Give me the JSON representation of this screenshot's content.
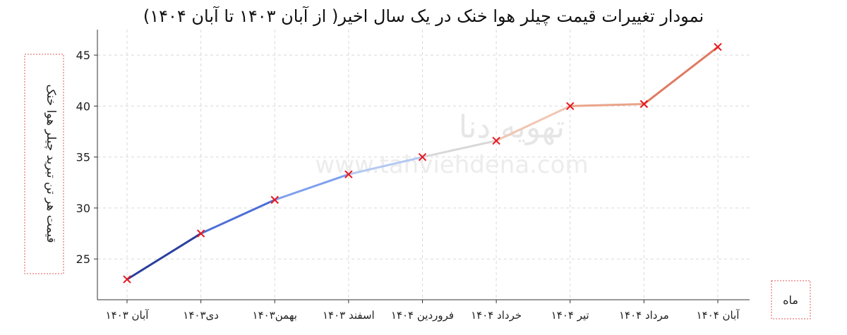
{
  "chart_data": {
    "type": "line",
    "title": "نمودار تغییرات قیمت چیلر هوا خنک در یک سال اخیر( از آبان ۱۴۰۳ تا آبان ۱۴۰۴)",
    "xlabel": "ماه",
    "ylabel": "قیمت هر تن تبرید چیلر هوا خنک",
    "categories": [
      "آبان ۱۴۰۳",
      "دی۱۴۰۳",
      "بهمن۱۴۰۳",
      "اسفند ۱۴۰۳",
      "فروردین ۱۴۰۴",
      "خرداد ۱۴۰۴",
      "تیر ۱۴۰۴",
      "مرداد ۱۴۰۴",
      "آبان ۱۴۰۴"
    ],
    "values": [
      23.0,
      27.5,
      30.8,
      33.3,
      35.0,
      36.6,
      40.0,
      40.2,
      45.8
    ],
    "ylim": [
      21.0,
      47.5
    ],
    "yticks": [
      25,
      30,
      35,
      40,
      45
    ],
    "grid": true,
    "marker": "x",
    "marker_color": "#e8191f",
    "line_colors": [
      "#2a3f9d",
      "#4d6fd6",
      "#7ea0ee",
      "#b3c8f2",
      "#d8d8d8",
      "#f0c6b3",
      "#eaa48a",
      "#e07a62",
      "#c94141"
    ]
  },
  "watermark": {
    "line1": "تهویه دنا",
    "line2": "www.tahviehdena.com"
  }
}
